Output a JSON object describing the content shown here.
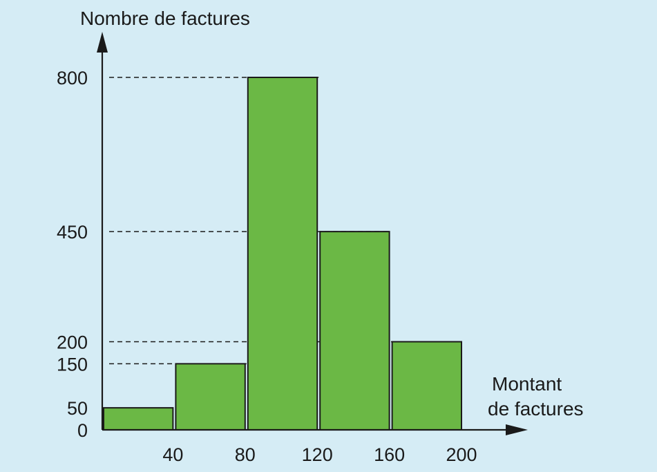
{
  "chart_data": {
    "type": "bar",
    "ylabel": "Nombre de factures",
    "xlabel_lines": [
      "Montant",
      "de factures"
    ],
    "bins": [
      {
        "from": 0,
        "to": 40,
        "value": 50
      },
      {
        "from": 40,
        "to": 80,
        "value": 150
      },
      {
        "from": 80,
        "to": 120,
        "value": 800
      },
      {
        "from": 120,
        "to": 160,
        "value": 450
      },
      {
        "from": 160,
        "to": 200,
        "value": 200
      }
    ],
    "x_ticks": [
      "40",
      "80",
      "120",
      "160",
      "200"
    ],
    "y_ticks": [
      "0",
      "50",
      "150",
      "200",
      "450",
      "800"
    ],
    "guide_levels": [
      800,
      450,
      200,
      150
    ],
    "ylim": [
      0,
      800
    ],
    "xlim": [
      0,
      200
    ],
    "bar_color": "#6bb845",
    "bar_stroke": "#1a1a1a",
    "background": "#d5ecf5"
  }
}
